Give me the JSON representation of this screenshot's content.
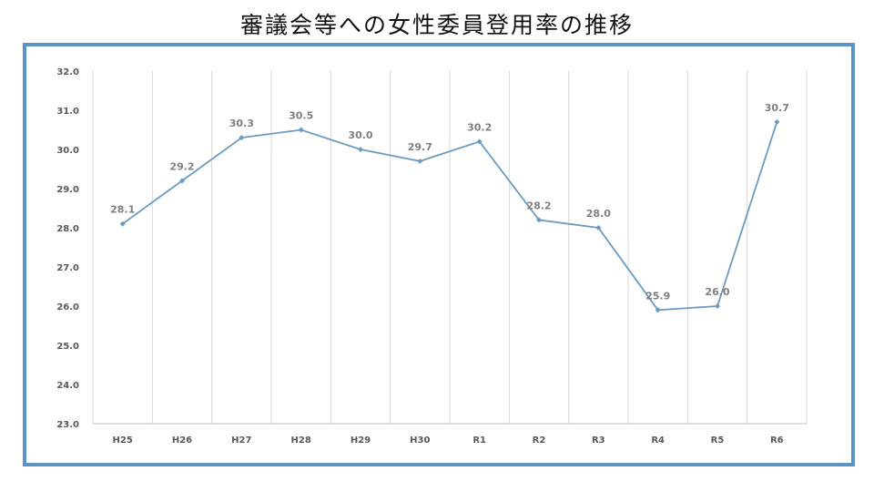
{
  "title": "審議会等への女性委員登用率の推移",
  "colors": {
    "frame": "#5b94c4",
    "line": "#6a9cc3",
    "grid": "#d9d9d9",
    "axis": "#bfbfbf"
  },
  "chart_data": {
    "type": "line",
    "title": "",
    "xlabel": "",
    "ylabel": "",
    "categories": [
      "H25",
      "H26",
      "H27",
      "H28",
      "H29",
      "H30",
      "R1",
      "R2",
      "R3",
      "R4",
      "R5",
      "R6"
    ],
    "y_tick_labels": [
      "23.0",
      "24.0",
      "25.0",
      "26.0",
      "27.0",
      "28.0",
      "29.0",
      "30.0",
      "31.0",
      "32.0"
    ],
    "ylim": [
      23,
      32
    ],
    "grid": "vertical",
    "legend": "none",
    "series": [
      {
        "values": [
          28.1,
          29.2,
          30.3,
          30.5,
          30.0,
          29.7,
          30.2,
          28.2,
          28.0,
          25.9,
          26.0,
          30.7
        ],
        "labels": [
          "28.1",
          "29.2",
          "30.3",
          "30.5",
          "30.0",
          "29.7",
          "30.2",
          "28.2",
          "28.0",
          "25.9",
          "26.0",
          "30.7"
        ]
      }
    ]
  }
}
